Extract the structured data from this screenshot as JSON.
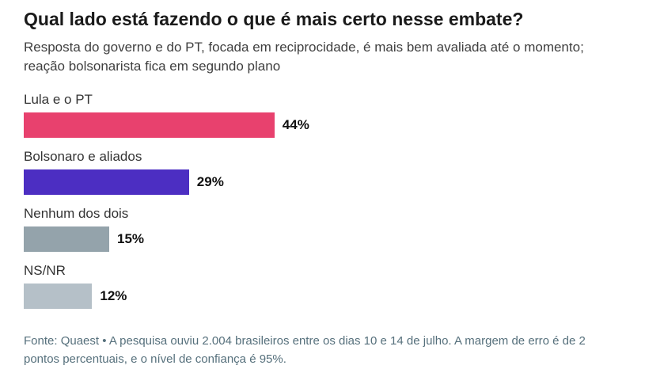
{
  "chart_data": {
    "type": "bar",
    "orientation": "horizontal",
    "title": "Qual lado está fazendo o que é mais certo nesse embate?",
    "subtitle": "Resposta do governo e do PT, focada em reciprocidade, é mais bem avaliada até o momento; reação bolsonarista fica em segundo plano",
    "categories": [
      "Lula e o PT",
      "Bolsonaro e aliados",
      "Nenhum dos dois",
      "NS/NR"
    ],
    "values": [
      44,
      29,
      15,
      12
    ],
    "value_suffix": "%",
    "colors": [
      "#e8416e",
      "#4c2ec2",
      "#94a3ab",
      "#b5c0c8"
    ],
    "xlim": [
      0,
      100
    ],
    "grid": false,
    "legend": "none",
    "source": "Fonte: Quaest • A pesquisa ouviu 2.004 brasileiros entre os dias 10 e 14 de julho. A margem de erro é de 2 pontos percentuais, e o nível de confiança é 95%."
  }
}
